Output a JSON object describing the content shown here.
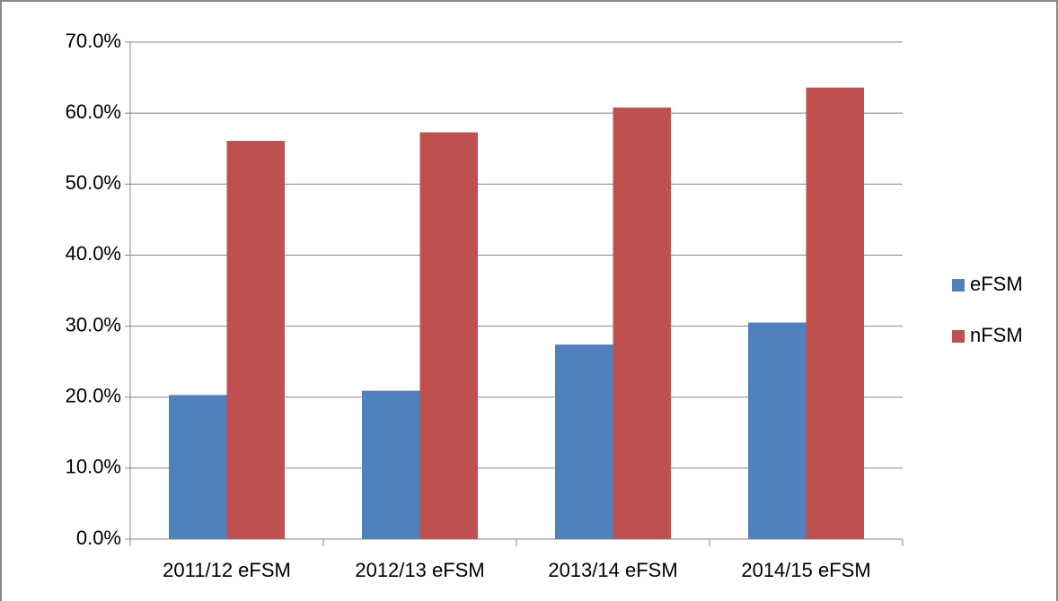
{
  "chart_data": {
    "type": "bar",
    "categories": [
      "2011/12 eFSM",
      "2012/13 eFSM",
      "2013/14 eFSM",
      "2014/15 eFSM"
    ],
    "series": [
      {
        "name": "eFSM",
        "color": "#4f81bd",
        "values": [
          20.3,
          20.9,
          27.4,
          30.5
        ]
      },
      {
        "name": "nFSM",
        "color": "#c0504d",
        "values": [
          56.1,
          57.3,
          60.8,
          63.6
        ]
      }
    ],
    "ylim": [
      0,
      70
    ],
    "yticks": [
      {
        "value": 0,
        "label": "0.0%"
      },
      {
        "value": 10,
        "label": "10.0%"
      },
      {
        "value": 20,
        "label": "20.0%"
      },
      {
        "value": 30,
        "label": "30.0%"
      },
      {
        "value": 40,
        "label": "40.0%"
      },
      {
        "value": 50,
        "label": "50.0%"
      },
      {
        "value": 60,
        "label": "60.0%"
      },
      {
        "value": 70,
        "label": "70.0%"
      }
    ],
    "grid": true,
    "legend": "right"
  }
}
